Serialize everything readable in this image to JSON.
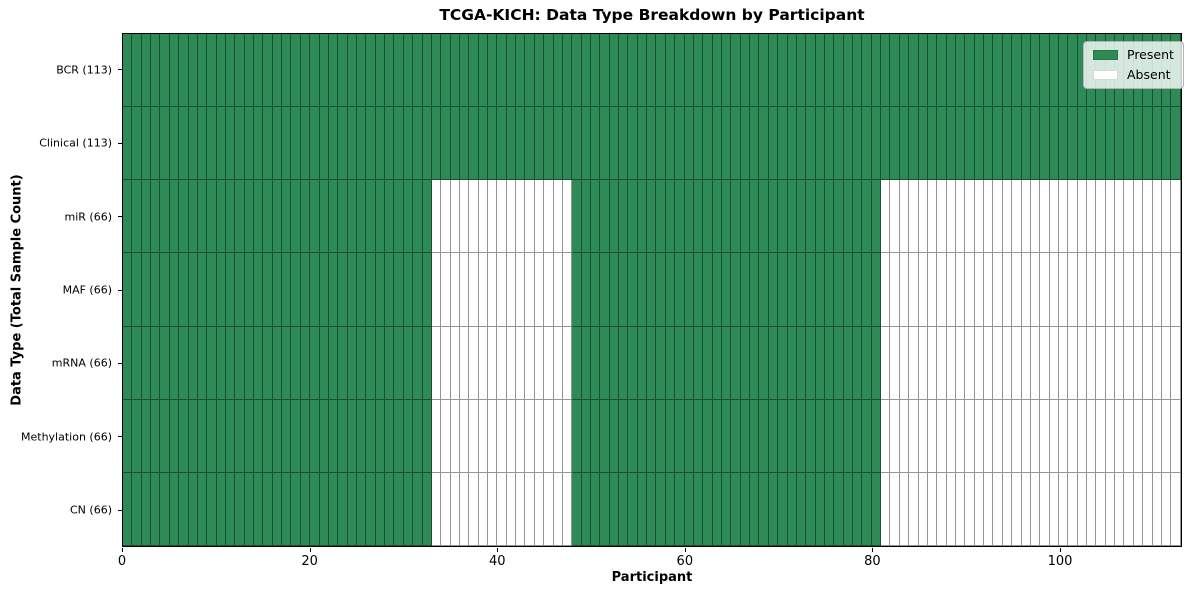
{
  "chart_data": {
    "type": "heatmap",
    "title": "TCGA-KICH: Data Type Breakdown by Participant",
    "xlabel": "Participant",
    "ylabel": "Data Type (Total Sample Count)",
    "xlim": [
      0,
      113
    ],
    "n_participants": 113,
    "x_ticks": [
      0,
      20,
      40,
      60,
      80,
      100
    ],
    "grid": false,
    "legend_position": "upper right",
    "categories": [
      "BCR (113)",
      "Clinical (113)",
      "miR (66)",
      "MAF (66)",
      "mRNA (66)",
      "Methylation (66)",
      "CN (66)"
    ],
    "rows": [
      {
        "label": "BCR (113)",
        "data_type": "BCR",
        "total_samples": 113,
        "present_runs": [
          [
            0,
            113
          ]
        ]
      },
      {
        "label": "Clinical (113)",
        "data_type": "Clinical",
        "total_samples": 113,
        "present_runs": [
          [
            0,
            113
          ]
        ]
      },
      {
        "label": "miR (66)",
        "data_type": "miR",
        "total_samples": 66,
        "present_runs": [
          [
            0,
            33
          ],
          [
            48,
            81
          ]
        ]
      },
      {
        "label": "MAF (66)",
        "data_type": "MAF",
        "total_samples": 66,
        "present_runs": [
          [
            0,
            33
          ],
          [
            48,
            81
          ]
        ]
      },
      {
        "label": "mRNA (66)",
        "data_type": "mRNA",
        "total_samples": 66,
        "present_runs": [
          [
            0,
            33
          ],
          [
            48,
            81
          ]
        ]
      },
      {
        "label": "Methylation (66)",
        "data_type": "Methylation",
        "total_samples": 66,
        "present_runs": [
          [
            0,
            33
          ],
          [
            48,
            81
          ]
        ]
      },
      {
        "label": "CN (66)",
        "data_type": "CN",
        "total_samples": 66,
        "present_runs": [
          [
            0,
            33
          ],
          [
            48,
            81
          ]
        ]
      }
    ],
    "legend": [
      {
        "label": "Present",
        "color": "#2e8b57"
      },
      {
        "label": "Absent",
        "color": "#ffffff"
      }
    ],
    "colors": {
      "present": "#2e8b57",
      "absent": "#ffffff",
      "edge": "rgba(0,0,0,0.42)"
    }
  }
}
